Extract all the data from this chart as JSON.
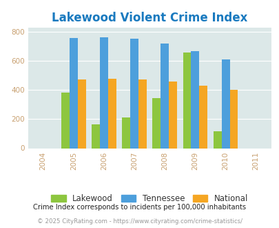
{
  "title": "Lakewood Violent Crime Index",
  "all_years": [
    2004,
    2005,
    2006,
    2007,
    2008,
    2009,
    2010,
    2011
  ],
  "data_years": [
    2005,
    2006,
    2007,
    2008,
    2009,
    2010
  ],
  "lakewood": [
    380,
    165,
    210,
    345,
    655,
    115
  ],
  "tennessee": [
    755,
    760,
    753,
    720,
    668,
    612
  ],
  "national": [
    470,
    478,
    470,
    458,
    430,
    400
  ],
  "bar_width": 0.27,
  "colors": {
    "lakewood": "#8dc63f",
    "tennessee": "#4d9fdc",
    "national": "#f5a623"
  },
  "ylim": [
    0,
    830
  ],
  "yticks": [
    0,
    200,
    400,
    600,
    800
  ],
  "xlim": [
    2003.5,
    2011.5
  ],
  "bg_color": "#dce8e8",
  "title_color": "#1a7abf",
  "title_fontsize": 12,
  "legend_labels": [
    "Lakewood",
    "Tennessee",
    "National"
  ],
  "footnote1": "Crime Index corresponds to incidents per 100,000 inhabitants",
  "footnote2": "© 2025 CityRating.com - https://www.cityrating.com/crime-statistics/",
  "footnote1_color": "#222222",
  "footnote2_color": "#999999",
  "tick_color": "#c8a070",
  "grid_color": "#ffffff"
}
